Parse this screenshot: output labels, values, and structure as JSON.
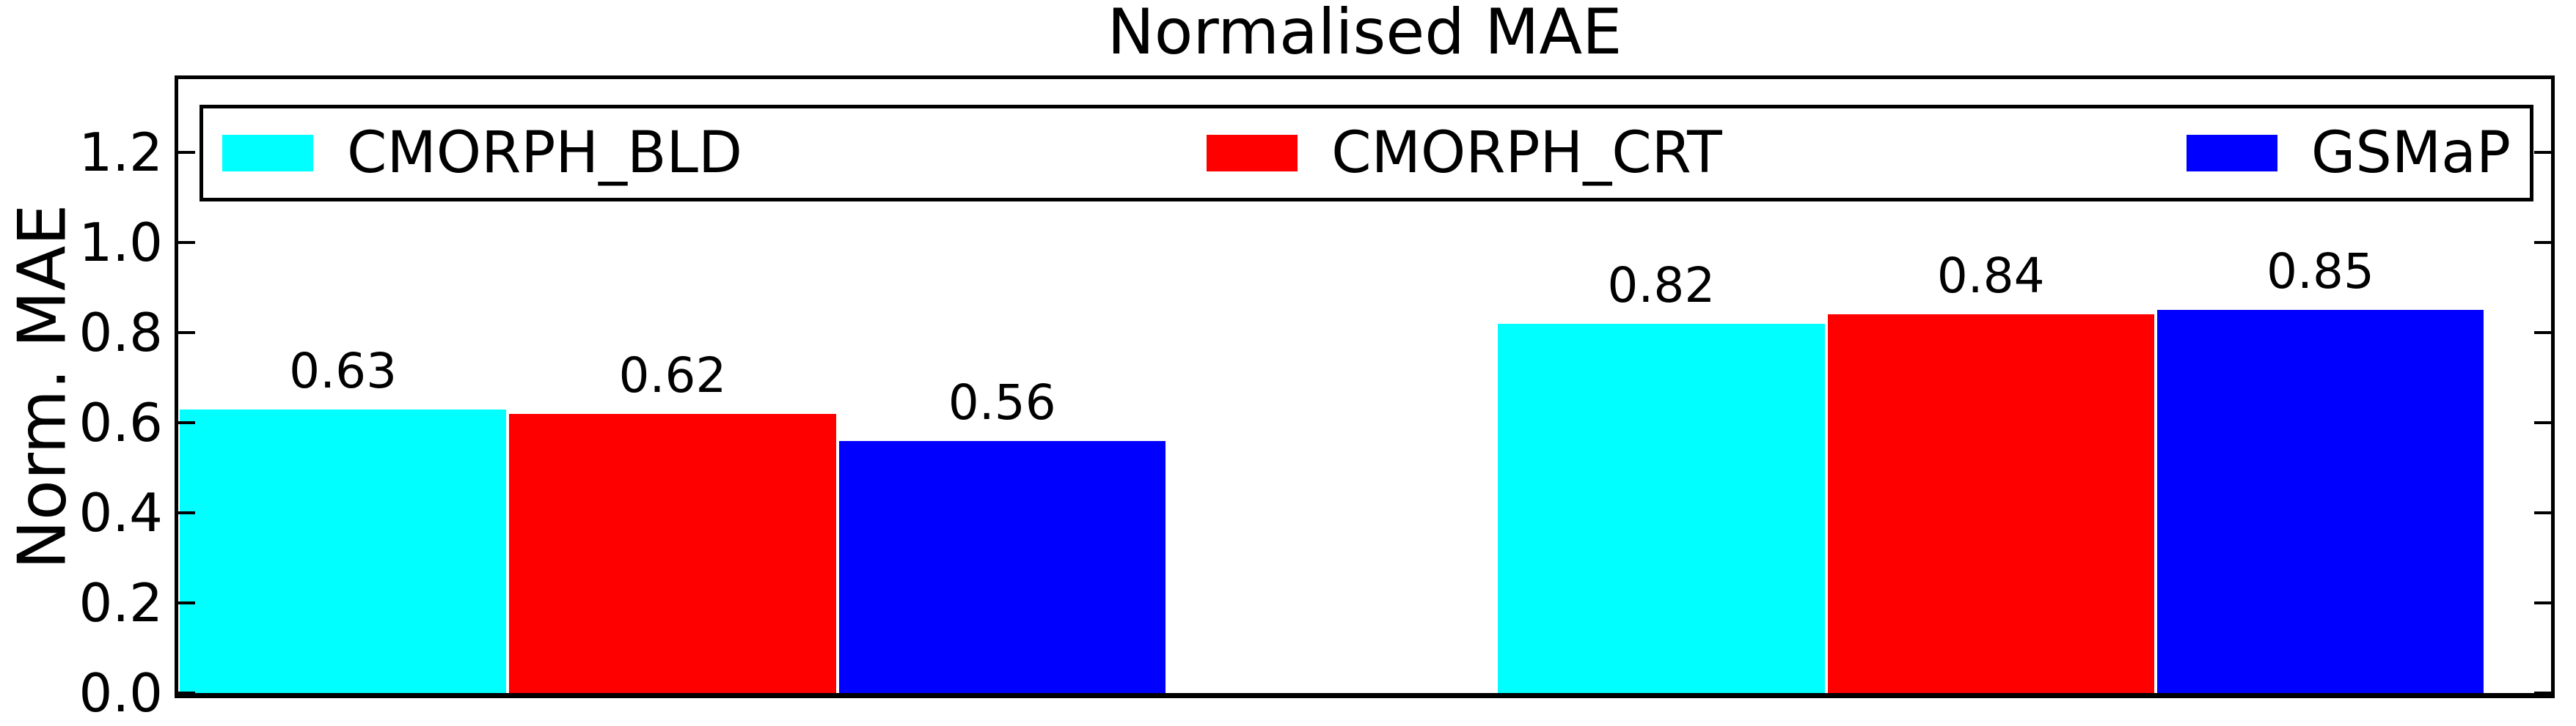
{
  "chart_data": {
    "type": "bar",
    "title": "Normalised MAE",
    "ylabel": "Norm. MAE",
    "group_count": 2,
    "series": [
      {
        "name": "CMORPH_BLD",
        "color": "#00ffff",
        "values": [
          0.63,
          0.82
        ],
        "value_labels": [
          "0.63",
          "0.82"
        ]
      },
      {
        "name": "CMORPH_CRT",
        "color": "#ff0000",
        "values": [
          0.62,
          0.84
        ],
        "value_labels": [
          "0.62",
          "0.84"
        ]
      },
      {
        "name": "GSMaP",
        "color": "#0000ff",
        "values": [
          0.56,
          0.85
        ],
        "value_labels": [
          "0.56",
          "0.85"
        ]
      }
    ],
    "ytick_labels": [
      "0.0",
      "0.2",
      "0.4",
      "0.6",
      "0.8",
      "1.0",
      "1.2"
    ],
    "ylim": [
      0,
      1.37
    ],
    "xtick_labels": [],
    "grid": false,
    "legend_position": "upper center, inside plot, spanning full width",
    "bar_labels_shown": true
  },
  "colors": {
    "axis": "#000000",
    "text": "#000000",
    "background": "#ffffff"
  }
}
